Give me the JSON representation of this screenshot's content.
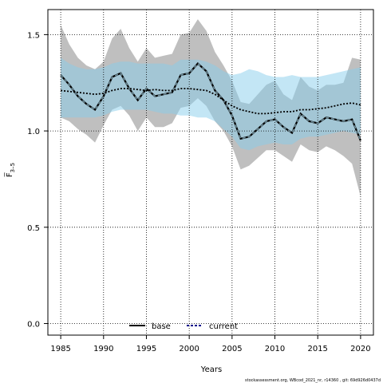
{
  "chart_data": {
    "type": "line",
    "xlabel": "Years",
    "ylabel": "F̅",
    "ylabel_sub": "3–5",
    "xlim": [
      1983.5,
      2021.5
    ],
    "ylim": [
      -0.06,
      1.63
    ],
    "x_ticks": [
      1985,
      1990,
      1995,
      2000,
      2005,
      2010,
      2015,
      2020
    ],
    "y_ticks": [
      0.0,
      0.5,
      1.0,
      1.5
    ],
    "y_tick_labels": [
      "0.0",
      "0.5",
      "1.0",
      "1.5"
    ],
    "grid": "dotted",
    "legend_position": "bottom-center",
    "footer": "stockassessment.org, WBcod_2021_nr, r14360 , git: 69d926d0437d",
    "x": [
      1985,
      1986,
      1987,
      1988,
      1989,
      1990,
      1991,
      1992,
      1993,
      1994,
      1995,
      1996,
      1997,
      1998,
      1999,
      2000,
      2001,
      2002,
      2003,
      2004,
      2005,
      2006,
      2007,
      2008,
      2009,
      2010,
      2011,
      2012,
      2013,
      2014,
      2015,
      2016,
      2017,
      2018,
      2019,
      2020
    ],
    "series": [
      {
        "name": "base",
        "color": "#000000",
        "band_color": "#808080",
        "values": [
          1.29,
          1.24,
          1.18,
          1.14,
          1.11,
          1.18,
          1.28,
          1.3,
          1.22,
          1.16,
          1.22,
          1.18,
          1.19,
          1.2,
          1.29,
          1.3,
          1.35,
          1.31,
          1.21,
          1.16,
          1.08,
          0.96,
          0.97,
          1.01,
          1.05,
          1.06,
          1.02,
          0.99,
          1.09,
          1.05,
          1.04,
          1.07,
          1.06,
          1.05,
          1.06,
          0.95
        ],
        "lower": [
          1.07,
          1.05,
          1.01,
          0.98,
          0.94,
          1.03,
          1.11,
          1.13,
          1.08,
          1.0,
          1.07,
          1.02,
          1.02,
          1.04,
          1.12,
          1.13,
          1.17,
          1.13,
          1.05,
          1.0,
          0.92,
          0.8,
          0.82,
          0.86,
          0.9,
          0.9,
          0.87,
          0.84,
          0.93,
          0.9,
          0.89,
          0.92,
          0.9,
          0.87,
          0.83,
          0.66
        ],
        "upper": [
          1.55,
          1.45,
          1.38,
          1.34,
          1.32,
          1.36,
          1.48,
          1.53,
          1.43,
          1.36,
          1.43,
          1.38,
          1.39,
          1.4,
          1.5,
          1.51,
          1.58,
          1.52,
          1.41,
          1.34,
          1.26,
          1.15,
          1.14,
          1.19,
          1.24,
          1.26,
          1.19,
          1.16,
          1.28,
          1.23,
          1.21,
          1.24,
          1.24,
          1.25,
          1.38,
          1.37
        ]
      },
      {
        "name": "current",
        "color": "#00008b",
        "band_color": "#87ceeb",
        "values": [
          1.21,
          1.205,
          1.2,
          1.195,
          1.19,
          1.195,
          1.21,
          1.22,
          1.22,
          1.215,
          1.21,
          1.215,
          1.21,
          1.21,
          1.22,
          1.22,
          1.215,
          1.21,
          1.19,
          1.16,
          1.13,
          1.11,
          1.1,
          1.09,
          1.09,
          1.095,
          1.1,
          1.1,
          1.11,
          1.11,
          1.115,
          1.12,
          1.13,
          1.14,
          1.145,
          1.135
        ],
        "lower": [
          1.07,
          1.07,
          1.07,
          1.07,
          1.07,
          1.08,
          1.1,
          1.11,
          1.11,
          1.11,
          1.11,
          1.1,
          1.09,
          1.09,
          1.08,
          1.08,
          1.07,
          1.07,
          1.05,
          1.01,
          0.97,
          0.91,
          0.9,
          0.92,
          0.93,
          0.94,
          0.93,
          0.93,
          0.96,
          0.97,
          0.97,
          0.98,
          0.99,
          1.0,
          0.99,
          0.98
        ],
        "upper": [
          1.38,
          1.35,
          1.33,
          1.32,
          1.32,
          1.33,
          1.35,
          1.36,
          1.36,
          1.35,
          1.35,
          1.35,
          1.35,
          1.34,
          1.37,
          1.37,
          1.37,
          1.36,
          1.34,
          1.31,
          1.29,
          1.3,
          1.32,
          1.31,
          1.29,
          1.28,
          1.28,
          1.29,
          1.28,
          1.28,
          1.28,
          1.29,
          1.3,
          1.31,
          1.32,
          1.33
        ]
      }
    ]
  }
}
